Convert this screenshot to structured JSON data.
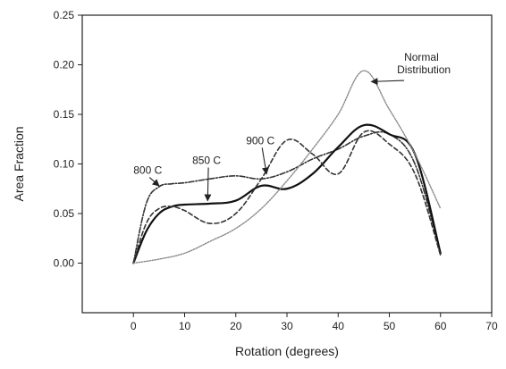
{
  "chart_data": {
    "type": "line",
    "title": "",
    "xlabel": "Rotation (degrees)",
    "ylabel": "Area Fraction",
    "xlim": [
      -10,
      70
    ],
    "ylim": [
      -0.05,
      0.25
    ],
    "xticks": [
      0,
      10,
      20,
      30,
      40,
      50,
      60,
      70
    ],
    "yticks": [
      0.0,
      0.05,
      0.1,
      0.15,
      0.2,
      0.25
    ],
    "xtick_labels": [
      "0",
      "10",
      "20",
      "30",
      "40",
      "50",
      "60",
      "70"
    ],
    "ytick_labels": [
      "0.00",
      "0.05",
      "0.10",
      "0.15",
      "0.20",
      "0.25"
    ],
    "grid": false,
    "legend": "none",
    "series": [
      {
        "name": "800 C",
        "style": "dash-dot",
        "x": [
          0,
          2.5,
          5,
          7.5,
          10,
          15,
          20,
          25,
          30,
          35,
          40,
          45,
          50,
          55,
          60
        ],
        "y": [
          0.0,
          0.06,
          0.077,
          0.08,
          0.081,
          0.085,
          0.088,
          0.085,
          0.092,
          0.105,
          0.115,
          0.128,
          0.13,
          0.1,
          0.01
        ]
      },
      {
        "name": "850 C",
        "style": "solid",
        "x": [
          0,
          2.5,
          5,
          7.5,
          10,
          15,
          20,
          25,
          30,
          35,
          40,
          45,
          50,
          55,
          60
        ],
        "y": [
          0.0,
          0.032,
          0.05,
          0.057,
          0.059,
          0.06,
          0.063,
          0.078,
          0.075,
          0.09,
          0.117,
          0.139,
          0.13,
          0.11,
          0.01
        ]
      },
      {
        "name": "900 C",
        "style": "dashed",
        "x": [
          0,
          2.5,
          5,
          7.5,
          10,
          15,
          20,
          25,
          30,
          35,
          40,
          45,
          50,
          55,
          60
        ],
        "y": [
          0.0,
          0.04,
          0.055,
          0.057,
          0.053,
          0.04,
          0.05,
          0.085,
          0.124,
          0.11,
          0.09,
          0.132,
          0.12,
          0.09,
          0.008
        ]
      },
      {
        "name": "Normal Distribution",
        "style": "dotted",
        "x": [
          0,
          5,
          10,
          15,
          20,
          25,
          30,
          35,
          40,
          45,
          50,
          55,
          60
        ],
        "y": [
          0.0,
          0.004,
          0.01,
          0.022,
          0.035,
          0.055,
          0.083,
          0.115,
          0.15,
          0.194,
          0.155,
          0.11,
          0.055
        ]
      }
    ],
    "annotations": [
      {
        "id": "a800",
        "text": "800 C",
        "label_x": 0,
        "label_y": 0.09,
        "target_x": 5,
        "target_y": 0.078
      },
      {
        "id": "a850",
        "text": "850 C",
        "label_x": 11.5,
        "label_y": 0.1,
        "target_x": 14.5,
        "target_y": 0.063
      },
      {
        "id": "a900",
        "text": "900 C",
        "label_x": 22,
        "label_y": 0.12,
        "target_x": 26,
        "target_y": 0.09
      },
      {
        "id": "anorm",
        "text": "Normal Distribution",
        "label_x": 51.5,
        "label_y": 0.195,
        "target_x": 46.5,
        "target_y": 0.183
      }
    ]
  }
}
